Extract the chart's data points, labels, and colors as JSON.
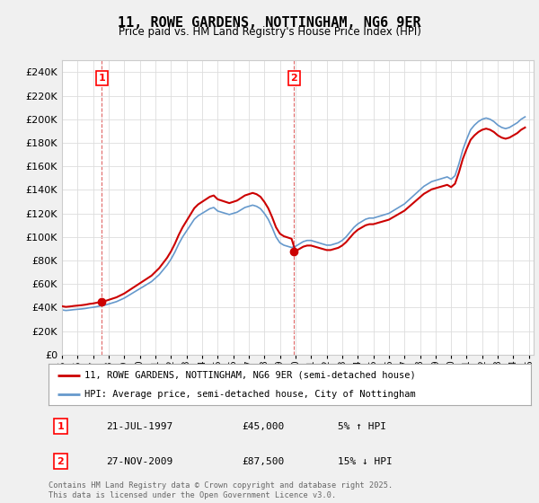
{
  "title": "11, ROWE GARDENS, NOTTINGHAM, NG6 9ER",
  "subtitle": "Price paid vs. HM Land Registry's House Price Index (HPI)",
  "legend_label_red": "11, ROWE GARDENS, NOTTINGHAM, NG6 9ER (semi-detached house)",
  "legend_label_blue": "HPI: Average price, semi-detached house, City of Nottingham",
  "annotation1_label": "1",
  "annotation1_date": "21-JUL-1997",
  "annotation1_price": "£45,000",
  "annotation1_hpi": "5% ↑ HPI",
  "annotation2_label": "2",
  "annotation2_date": "27-NOV-2009",
  "annotation2_price": "£87,500",
  "annotation2_hpi": "15% ↓ HPI",
  "footer": "Contains HM Land Registry data © Crown copyright and database right 2025.\nThis data is licensed under the Open Government Licence v3.0.",
  "ylim": [
    0,
    250000
  ],
  "yticks": [
    0,
    20000,
    40000,
    60000,
    80000,
    100000,
    120000,
    140000,
    160000,
    180000,
    200000,
    220000,
    240000
  ],
  "background_color": "#f0f0f0",
  "plot_bg_color": "#ffffff",
  "red_color": "#cc0000",
  "blue_color": "#6699cc",
  "sale1_year": 1997.55,
  "sale1_val": 45000,
  "sale2_year": 2009.9,
  "sale2_val": 87500,
  "hpi_years": [
    1995.0,
    1995.25,
    1995.5,
    1995.75,
    1996.0,
    1996.25,
    1996.5,
    1996.75,
    1997.0,
    1997.25,
    1997.5,
    1997.75,
    1998.0,
    1998.25,
    1998.5,
    1998.75,
    1999.0,
    1999.25,
    1999.5,
    1999.75,
    2000.0,
    2000.25,
    2000.5,
    2000.75,
    2001.0,
    2001.25,
    2001.5,
    2001.75,
    2002.0,
    2002.25,
    2002.5,
    2002.75,
    2003.0,
    2003.25,
    2003.5,
    2003.75,
    2004.0,
    2004.25,
    2004.5,
    2004.75,
    2005.0,
    2005.25,
    2005.5,
    2005.75,
    2006.0,
    2006.25,
    2006.5,
    2006.75,
    2007.0,
    2007.25,
    2007.5,
    2007.75,
    2008.0,
    2008.25,
    2008.5,
    2008.75,
    2009.0,
    2009.25,
    2009.5,
    2009.75,
    2010.0,
    2010.25,
    2010.5,
    2010.75,
    2011.0,
    2011.25,
    2011.5,
    2011.75,
    2012.0,
    2012.25,
    2012.5,
    2012.75,
    2013.0,
    2013.25,
    2013.5,
    2013.75,
    2014.0,
    2014.25,
    2014.5,
    2014.75,
    2015.0,
    2015.25,
    2015.5,
    2015.75,
    2016.0,
    2016.25,
    2016.5,
    2016.75,
    2017.0,
    2017.25,
    2017.5,
    2017.75,
    2018.0,
    2018.25,
    2018.5,
    2018.75,
    2019.0,
    2019.25,
    2019.5,
    2019.75,
    2020.0,
    2020.25,
    2020.5,
    2020.75,
    2021.0,
    2021.25,
    2021.5,
    2021.75,
    2022.0,
    2022.25,
    2022.5,
    2022.75,
    2023.0,
    2023.25,
    2023.5,
    2023.75,
    2024.0,
    2024.25,
    2024.5,
    2024.75
  ],
  "hpi_values": [
    38000,
    37500,
    37800,
    38200,
    38500,
    38800,
    39200,
    39800,
    40200,
    40800,
    41500,
    42000,
    43000,
    44000,
    45000,
    46500,
    48000,
    50000,
    52000,
    54000,
    56000,
    58000,
    60000,
    62000,
    65000,
    68000,
    72000,
    76000,
    81000,
    87000,
    94000,
    100000,
    105000,
    110000,
    115000,
    118000,
    120000,
    122000,
    124000,
    125000,
    122000,
    121000,
    120000,
    119000,
    120000,
    121000,
    123000,
    125000,
    126000,
    127000,
    126000,
    124000,
    120000,
    115000,
    108000,
    100000,
    95000,
    93000,
    92000,
    91000,
    92000,
    94000,
    96000,
    97000,
    97000,
    96000,
    95000,
    94000,
    93000,
    93000,
    94000,
    95000,
    97000,
    100000,
    104000,
    108000,
    111000,
    113000,
    115000,
    116000,
    116000,
    117000,
    118000,
    119000,
    120000,
    122000,
    124000,
    126000,
    128000,
    131000,
    134000,
    137000,
    140000,
    143000,
    145000,
    147000,
    148000,
    149000,
    150000,
    151000,
    149000,
    152000,
    162000,
    174000,
    183000,
    191000,
    195000,
    198000,
    200000,
    201000,
    200000,
    198000,
    195000,
    193000,
    192000,
    193000,
    195000,
    197000,
    200000,
    202000
  ],
  "xtick_years": [
    1995,
    1996,
    1997,
    1998,
    1999,
    2000,
    2001,
    2002,
    2003,
    2004,
    2005,
    2006,
    2007,
    2008,
    2009,
    2010,
    2011,
    2012,
    2013,
    2014,
    2015,
    2016,
    2017,
    2018,
    2019,
    2020,
    2021,
    2022,
    2023,
    2024,
    2025
  ]
}
